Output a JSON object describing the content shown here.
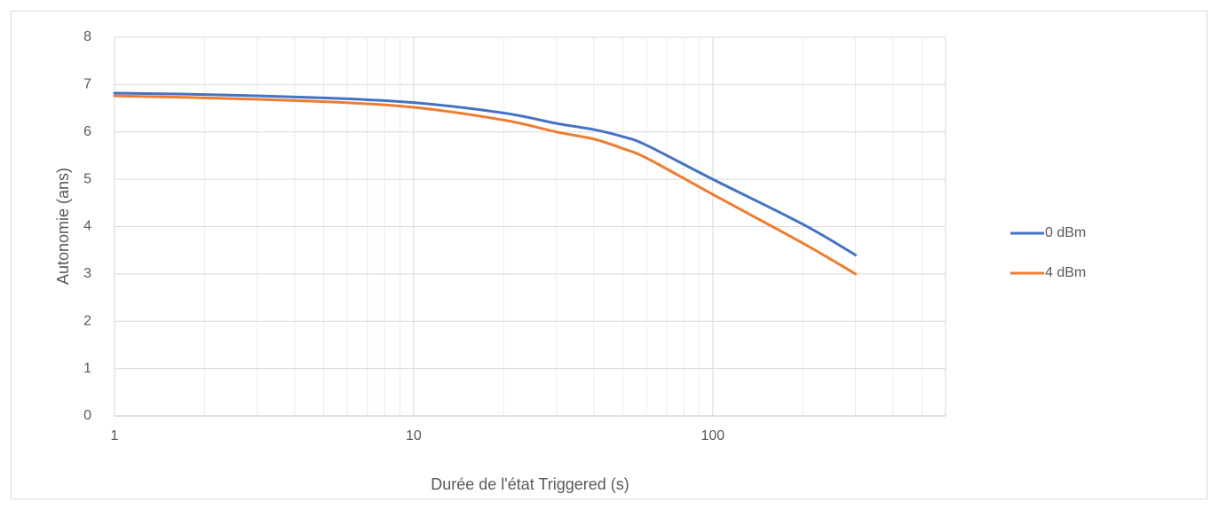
{
  "chart_data": {
    "type": "line",
    "x_label": "Durée de l'état Triggered (s)",
    "y_label": "Autonomie (ans)",
    "x": [
      1,
      2,
      5,
      10,
      20,
      30,
      40,
      50,
      60,
      100,
      200,
      300
    ],
    "series": [
      {
        "name": "0 dBm",
        "color": "#4472c4",
        "values": [
          6.82,
          6.79,
          6.72,
          6.62,
          6.4,
          6.18,
          6.05,
          5.9,
          5.72,
          5.0,
          4.05,
          3.4
        ]
      },
      {
        "name": "4 dBm",
        "color": "#ed7d31",
        "values": [
          6.76,
          6.72,
          6.64,
          6.52,
          6.25,
          6.0,
          5.85,
          5.65,
          5.45,
          4.68,
          3.65,
          3.0
        ]
      }
    ],
    "xlim": [
      1,
      600
    ],
    "xscale": "log",
    "xticks": [
      1,
      10,
      100
    ],
    "xminorticks": [
      2,
      3,
      4,
      5,
      6,
      7,
      8,
      9,
      20,
      30,
      40,
      50,
      60,
      70,
      80,
      90,
      200,
      300,
      400,
      500
    ],
    "ylim": [
      0,
      8
    ],
    "yticks": [
      0,
      1,
      2,
      3,
      4,
      5,
      6,
      7,
      8
    ],
    "grid": true,
    "smooth": true,
    "legend": "right"
  }
}
